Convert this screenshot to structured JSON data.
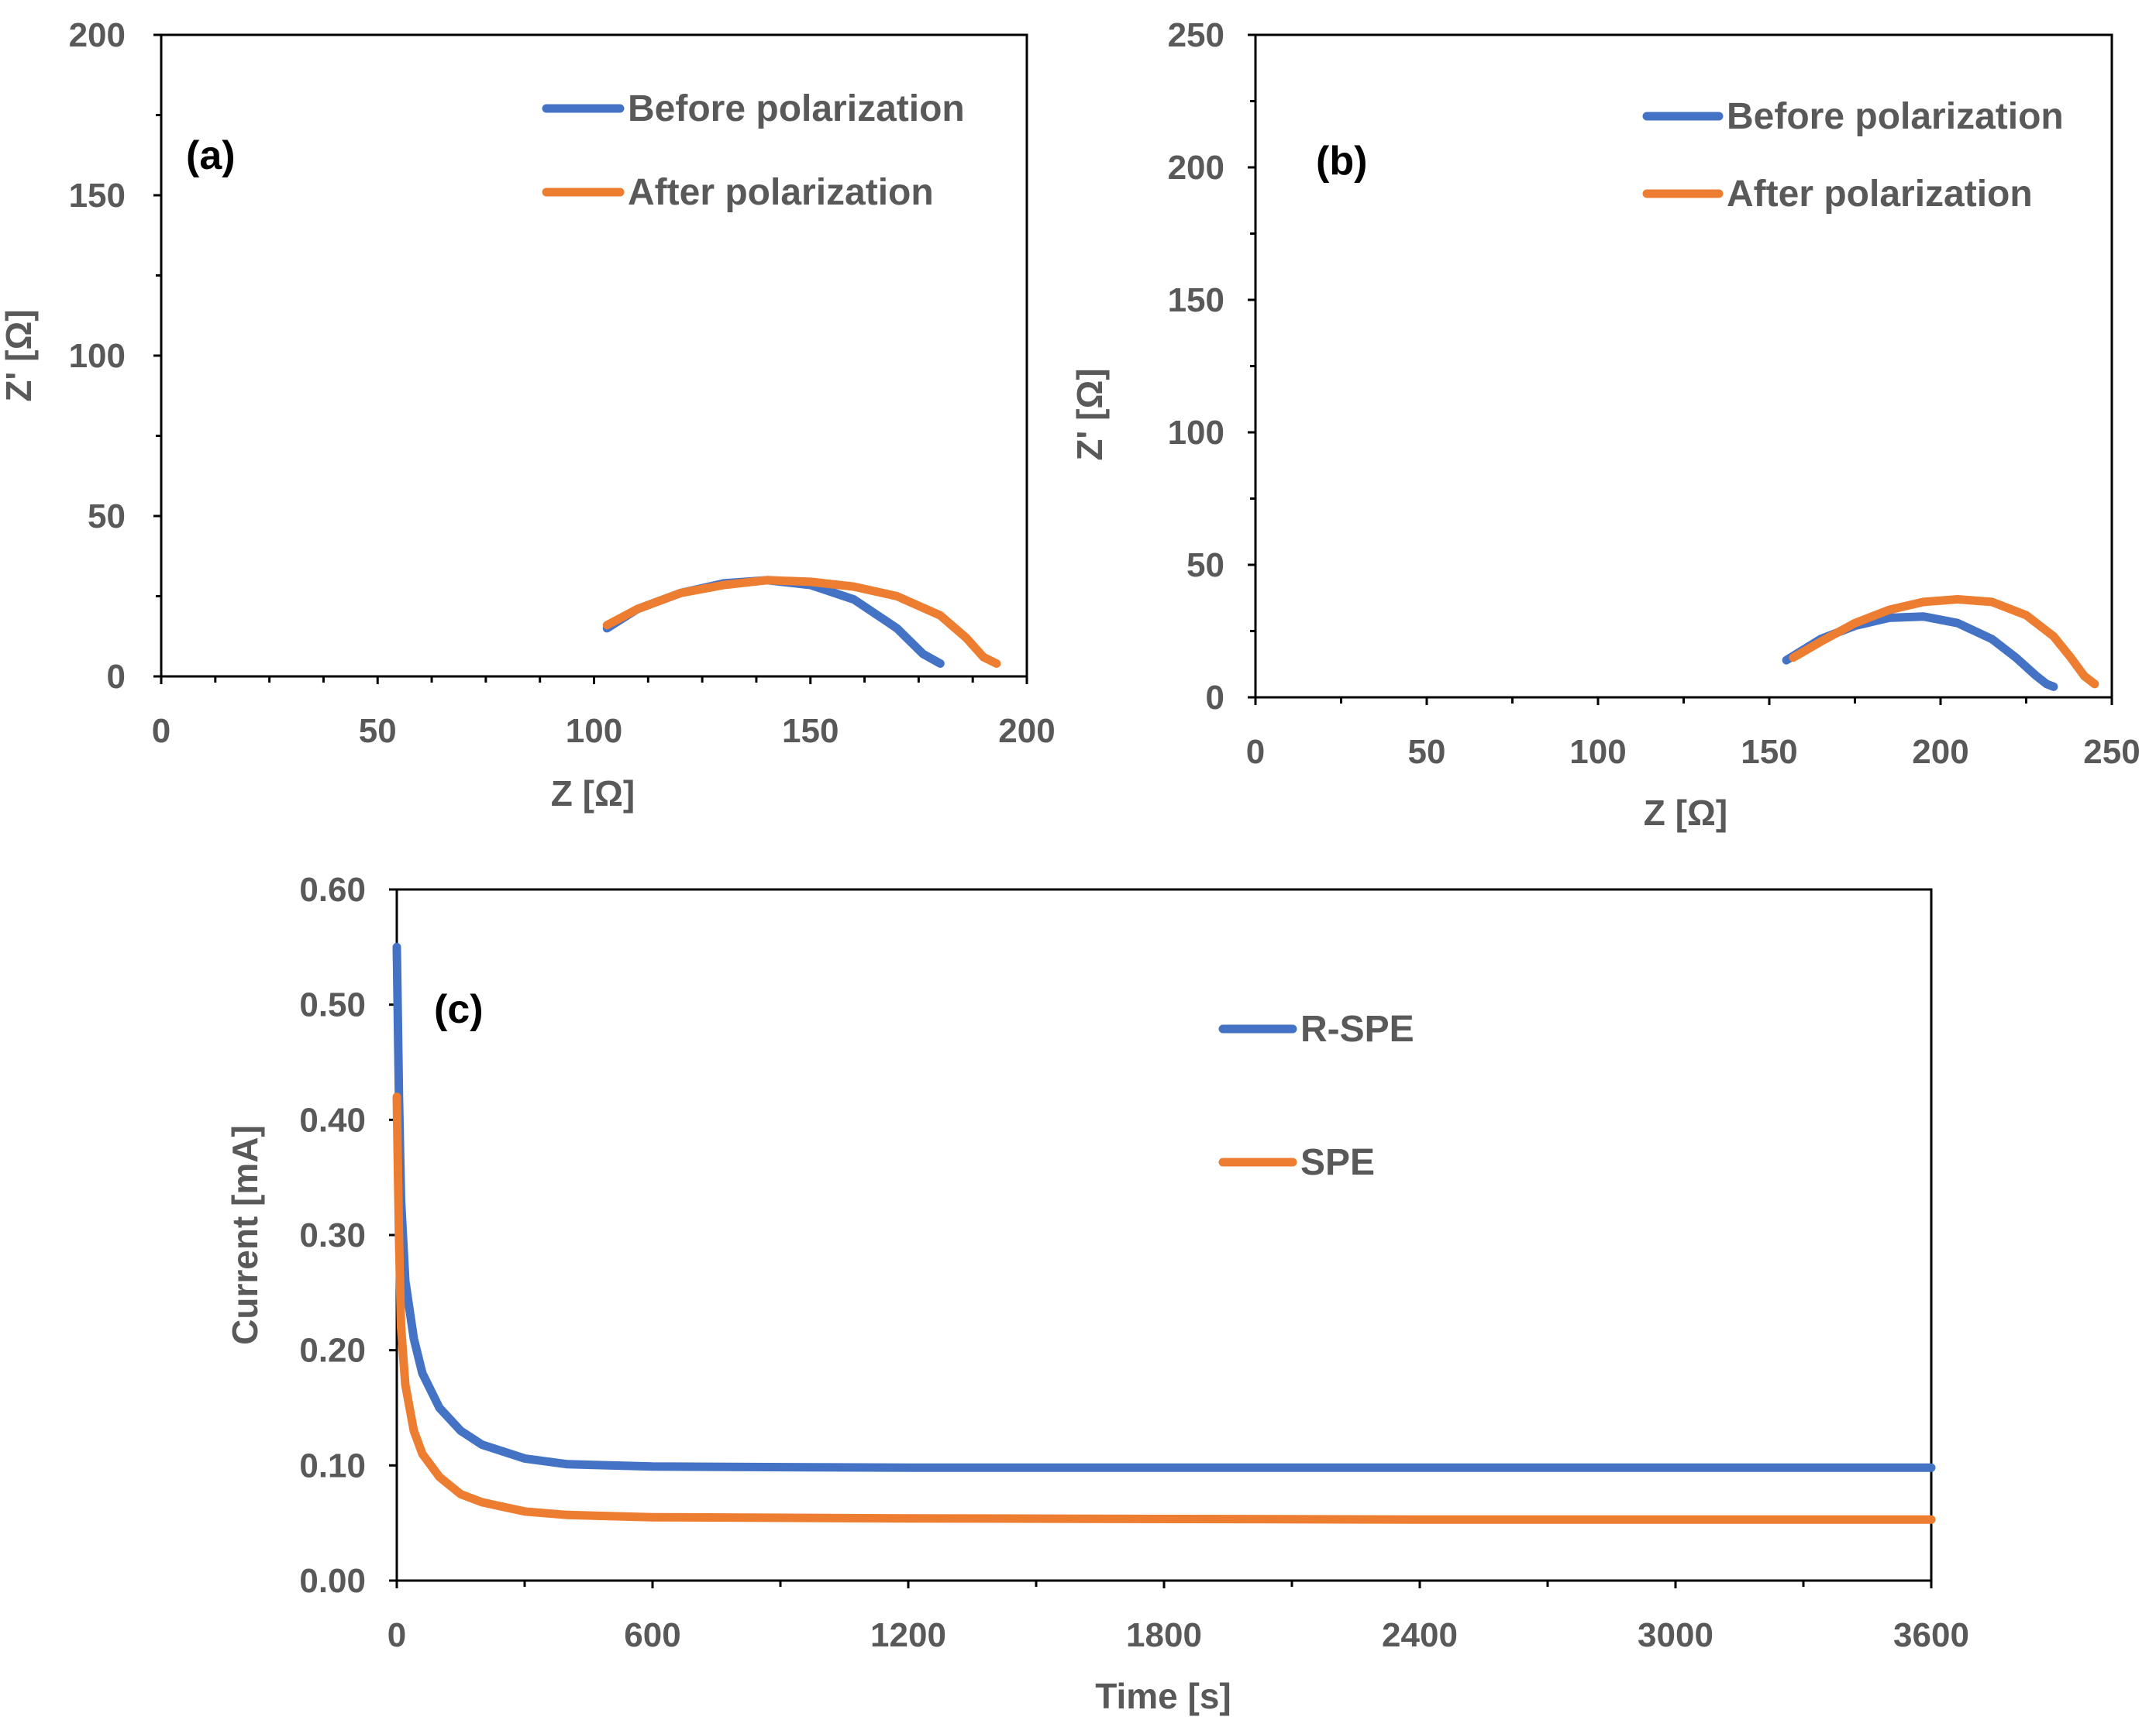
{
  "chart_data": [
    {
      "type": "line",
      "panel_label": "(a)",
      "xlabel": "Z [Ω]",
      "ylabel": "Z' [Ω]",
      "xlim": [
        0,
        200
      ],
      "ylim": [
        0,
        200
      ],
      "xticks": [
        "0",
        "50",
        "100",
        "150",
        "200"
      ],
      "yticks": [
        "0",
        "50",
        "100",
        "150",
        "200"
      ],
      "legend": "top-right",
      "series": [
        {
          "name": "Before polarization",
          "color": "#4472C4",
          "x": [
            103,
            110,
            120,
            130,
            140,
            150,
            160,
            170,
            176,
            180
          ],
          "y": [
            15,
            21,
            26,
            29,
            30,
            28.5,
            24,
            15,
            7,
            4
          ]
        },
        {
          "name": "After polarization",
          "color": "#ED7D31",
          "x": [
            103,
            110,
            120,
            130,
            140,
            150,
            160,
            170,
            180,
            186,
            190,
            193
          ],
          "y": [
            16,
            21,
            26,
            28.5,
            30,
            29.5,
            28,
            25,
            19,
            12,
            6,
            4
          ]
        }
      ]
    },
    {
      "type": "line",
      "panel_label": "(b)",
      "xlabel": "Z [Ω]",
      "ylabel": "Z' [Ω]",
      "xlim": [
        0,
        250
      ],
      "ylim": [
        0,
        250
      ],
      "xticks": [
        "0",
        "50",
        "100",
        "150",
        "200",
        "250"
      ],
      "yticks": [
        "0",
        "50",
        "100",
        "150",
        "200",
        "250"
      ],
      "legend": "top-right",
      "series": [
        {
          "name": "Before polarization",
          "color": "#4472C4",
          "x": [
            155,
            165,
            175,
            185,
            195,
            205,
            215,
            222,
            228,
            231,
            233
          ],
          "y": [
            14,
            22,
            27,
            30,
            30.5,
            28,
            22,
            15,
            8,
            5,
            4
          ]
        },
        {
          "name": "After polarization",
          "color": "#ED7D31",
          "x": [
            157,
            165,
            175,
            185,
            195,
            205,
            215,
            225,
            233,
            238,
            242,
            245
          ],
          "y": [
            15,
            21,
            28,
            33,
            36,
            37,
            36,
            31,
            23,
            15,
            8,
            5
          ]
        }
      ]
    },
    {
      "type": "line",
      "panel_label": "(c)",
      "xlabel": "Time [s]",
      "ylabel": "Current [mA]",
      "xlim": [
        0,
        3600
      ],
      "ylim": [
        0,
        0.6
      ],
      "xticks": [
        "0",
        "600",
        "1200",
        "1800",
        "2400",
        "3000",
        "3600"
      ],
      "yticks": [
        "0.00",
        "0.10",
        "0.20",
        "0.30",
        "0.40",
        "0.50",
        "0.60"
      ],
      "legend": "top-right",
      "series": [
        {
          "name": "R-SPE",
          "color": "#4472C4",
          "x": [
            0,
            5,
            10,
            20,
            40,
            60,
            100,
            150,
            200,
            300,
            400,
            600,
            1200,
            2400,
            3600
          ],
          "y": [
            0.55,
            0.42,
            0.33,
            0.26,
            0.21,
            0.18,
            0.15,
            0.13,
            0.118,
            0.106,
            0.101,
            0.099,
            0.098,
            0.098,
            0.098
          ]
        },
        {
          "name": "SPE",
          "color": "#ED7D31",
          "x": [
            0,
            5,
            10,
            20,
            40,
            60,
            100,
            150,
            200,
            300,
            400,
            600,
            1200,
            2400,
            3600
          ],
          "y": [
            0.42,
            0.3,
            0.22,
            0.17,
            0.13,
            0.11,
            0.09,
            0.075,
            0.068,
            0.06,
            0.057,
            0.055,
            0.054,
            0.053,
            0.053
          ]
        }
      ]
    }
  ]
}
